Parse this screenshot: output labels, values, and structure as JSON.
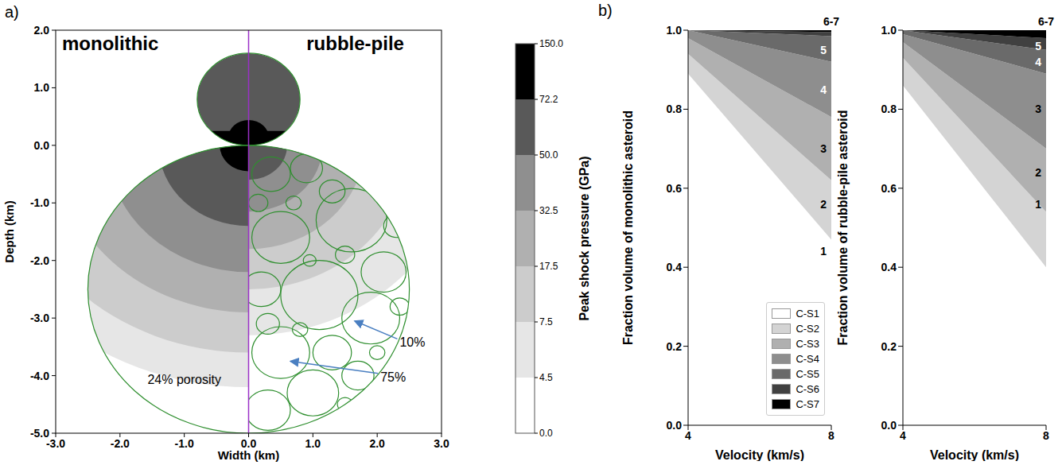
{
  "panel_a": {
    "letter": "a)",
    "left_title": "monolithic",
    "right_title": "rubble-pile",
    "x_label": "Width (km)",
    "y_label": "Depth (km)",
    "xlim": [
      -3,
      3
    ],
    "ylim": [
      -5,
      2
    ],
    "xticks": [
      {
        "value": -3,
        "label": "-3.0"
      },
      {
        "value": -2,
        "label": "-2.0"
      },
      {
        "value": -1,
        "label": "-1.0"
      },
      {
        "value": 0,
        "label": "0.0"
      },
      {
        "value": 1,
        "label": "1.0"
      },
      {
        "value": 2,
        "label": "2.0"
      },
      {
        "value": 3,
        "label": "3.0"
      }
    ],
    "yticks": [
      {
        "value": -5,
        "label": "-5.0"
      },
      {
        "value": -4,
        "label": "-4.0"
      },
      {
        "value": -3,
        "label": "-3.0"
      },
      {
        "value": -2,
        "label": "-2.0"
      },
      {
        "value": -1,
        "label": "-1.0"
      },
      {
        "value": 0,
        "label": "0.0"
      },
      {
        "value": 1,
        "label": "1.0"
      },
      {
        "value": 2,
        "label": "2.0"
      }
    ],
    "annotations": [
      {
        "text": "24% porosity",
        "x": -1.0,
        "y": -4.15
      },
      {
        "text": "10%",
        "x": 2.35,
        "y": -3.5
      },
      {
        "text": "75%",
        "x": 2.05,
        "y": -4.1
      }
    ],
    "colorbar": {
      "label": "Peak shock pressure (GPa)",
      "ticks": [
        {
          "value": 0,
          "label": "0.0"
        },
        4.5,
        7.5,
        17.5,
        32.5,
        {
          "value": 50,
          "label": "50.0"
        },
        72.2,
        {
          "value": 150,
          "label": "150.0"
        }
      ],
      "colors": [
        "#ffffff",
        "#e6e6e6",
        "#cccccc",
        "#b0b0b0",
        "#8f8f8f",
        "#595959",
        "#000000"
      ]
    }
  },
  "panel_b": {
    "letter": "b)"
  },
  "chart_data": [
    {
      "type": "area",
      "stacked": true,
      "x_label": "Velocity (km/s)",
      "y_label": "Fraction volume of monolithic asteroid",
      "x": [
        4,
        8
      ],
      "xlim": [
        4,
        8
      ],
      "xticks": [
        4,
        8
      ],
      "ylim": [
        0,
        1
      ],
      "yticks": [
        {
          "value": 0,
          "label": "0.0"
        },
        {
          "value": 0.2,
          "label": "0.2"
        },
        {
          "value": 0.4,
          "label": "0.4"
        },
        {
          "value": 0.6,
          "label": "0.6"
        },
        {
          "value": 0.8,
          "label": "0.8"
        },
        {
          "value": 1,
          "label": "1.0"
        }
      ],
      "legend": "lower right",
      "series": [
        {
          "name": "C-S1",
          "color": "#ffffff",
          "values": [
            0.89,
            0.47
          ]
        },
        {
          "name": "C-S2",
          "color": "#d4d4d4",
          "values": [
            0.05,
            0.15
          ]
        },
        {
          "name": "C-S3",
          "color": "#b0b0b0",
          "values": [
            0.04,
            0.16
          ]
        },
        {
          "name": "C-S4",
          "color": "#8e8e8e",
          "values": [
            0.02,
            0.14
          ]
        },
        {
          "name": "C-S5",
          "color": "#6a6a6a",
          "values": [
            0,
            0.065
          ]
        },
        {
          "name": "C-S6",
          "color": "#404040",
          "values": [
            0,
            0.01
          ]
        },
        {
          "name": "C-S7",
          "color": "#000000",
          "values": [
            0,
            0.005
          ]
        }
      ],
      "annotations": [
        {
          "text": "1",
          "y": 0.44,
          "color": "#000000"
        },
        {
          "text": "2",
          "y": 0.56,
          "color": "#000000"
        },
        {
          "text": "3",
          "y": 0.7,
          "color": "#000000"
        },
        {
          "text": "4",
          "y": 0.85,
          "color": "#ffffff"
        },
        {
          "text": "5",
          "y": 0.95,
          "color": "#ffffff"
        },
        {
          "text": "6-7",
          "y": 1,
          "color": "#000000"
        }
      ]
    },
    {
      "type": "area",
      "stacked": true,
      "x_label": "Velocity (km/s)",
      "y_label": "Fraction volume of rubble-pile asteroid",
      "x": [
        4,
        8
      ],
      "xlim": [
        4,
        8
      ],
      "xticks": [
        4,
        8
      ],
      "ylim": [
        0,
        1
      ],
      "yticks": [
        {
          "value": 0,
          "label": "0.0"
        },
        {
          "value": 0.2,
          "label": "0.2"
        },
        {
          "value": 0.4,
          "label": "0.4"
        },
        {
          "value": 0.6,
          "label": "0.6"
        },
        {
          "value": 0.8,
          "label": "0.8"
        },
        {
          "value": 1,
          "label": "1.0"
        }
      ],
      "series": [
        {
          "color": "#ffffff",
          "values": [
            0.86,
            0.4
          ]
        },
        {
          "color": "#d4d4d4",
          "values": [
            0.07,
            0.14
          ]
        },
        {
          "color": "#b0b0b0",
          "values": [
            0.04,
            0.16
          ]
        },
        {
          "color": "#8e8e8e",
          "values": [
            0.02,
            0.19
          ]
        },
        {
          "color": "#6a6a6a",
          "values": [
            0.01,
            0.06
          ]
        },
        {
          "color": "#404040",
          "values": [
            0,
            0.03
          ]
        },
        {
          "color": "#000000",
          "values": [
            0,
            0.02
          ]
        }
      ],
      "annotations": [
        {
          "text": "1",
          "y": 0.56,
          "color": "#000000"
        },
        {
          "text": "2",
          "y": 0.64,
          "color": "#000000"
        },
        {
          "text": "3",
          "y": 0.8,
          "color": "#000000"
        },
        {
          "text": "4",
          "y": 0.92,
          "color": "#ffffff"
        },
        {
          "text": "5",
          "y": 0.96,
          "color": "#ffffff"
        },
        {
          "text": "6-7",
          "y": 1,
          "color": "#000000"
        }
      ]
    }
  ]
}
